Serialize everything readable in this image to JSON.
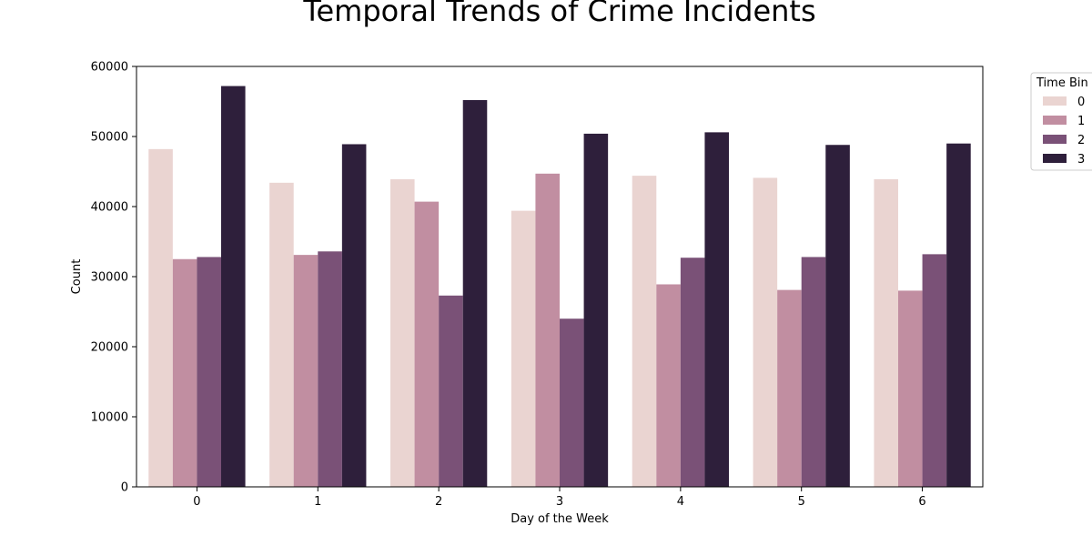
{
  "chart_data": {
    "type": "bar",
    "title": "Temporal Trends of Crime Incidents",
    "xlabel": "Day of the Week",
    "ylabel": "Count",
    "categories": [
      "0",
      "1",
      "2",
      "3",
      "4",
      "5",
      "6"
    ],
    "ylim": [
      0,
      60000
    ],
    "yticks": [
      "0",
      "10000",
      "20000",
      "30000",
      "40000",
      "50000",
      "60000"
    ],
    "legend": {
      "title": "Time Bin",
      "placement": "outside-top-right"
    },
    "grid": false,
    "series": [
      {
        "name": "0",
        "color": "#ead4d1",
        "values": [
          48200,
          43400,
          43900,
          39400,
          44400,
          44100,
          43900
        ]
      },
      {
        "name": "1",
        "color": "#c18ea1",
        "values": [
          32500,
          33100,
          40700,
          44700,
          28900,
          28100,
          28000
        ]
      },
      {
        "name": "2",
        "color": "#7a5177",
        "values": [
          32800,
          33600,
          27300,
          24000,
          32700,
          32800,
          33200
        ]
      },
      {
        "name": "3",
        "color": "#2e1f3b",
        "values": [
          57200,
          48900,
          55200,
          50400,
          50600,
          48800,
          49000
        ]
      }
    ]
  }
}
